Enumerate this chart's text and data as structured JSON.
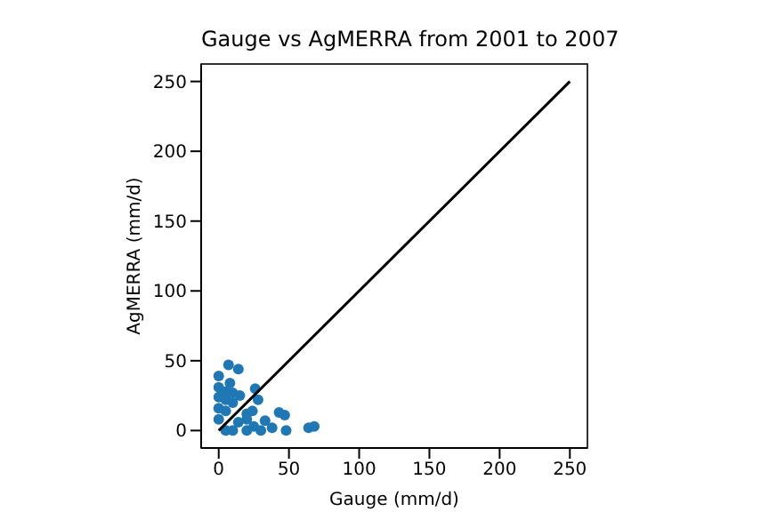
{
  "chart_data": {
    "type": "scatter",
    "title": "Gauge vs AgMERRA from 2001 to 2007",
    "xlabel": "Gauge (mm/d)",
    "ylabel": "AgMERRA (mm/d)",
    "xlim": [
      -12.5,
      262.5
    ],
    "ylim": [
      -12.5,
      262.5
    ],
    "xticks": [
      0,
      50,
      100,
      150,
      200,
      250
    ],
    "yticks": [
      0,
      50,
      100,
      150,
      200,
      250
    ],
    "marker": "circle",
    "series": [
      {
        "color": "#1f77b4",
        "x": [
          7,
          14,
          0,
          8,
          26,
          28,
          43,
          47,
          33,
          38,
          48,
          64,
          68,
          0,
          0,
          0,
          0,
          5,
          5,
          5,
          5,
          10,
          10,
          10,
          15,
          20,
          20,
          20,
          25,
          24,
          14,
          30
        ],
        "values": [
          47,
          44,
          39,
          34,
          30,
          22,
          13,
          11,
          7,
          2,
          0,
          2,
          3,
          8,
          16,
          24,
          31,
          0,
          14,
          22,
          28,
          0,
          20,
          27,
          25,
          0,
          8,
          12,
          3,
          14,
          6,
          0
        ]
      },
      {
        "type": "line",
        "color": "#000000",
        "x": [
          0,
          250
        ],
        "values": [
          0,
          250
        ],
        "marker": "none"
      }
    ]
  }
}
